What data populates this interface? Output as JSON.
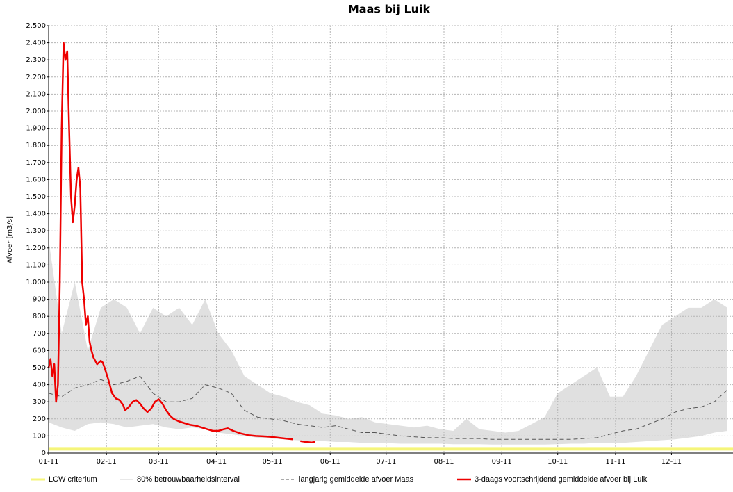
{
  "chart_data": {
    "type": "line",
    "title": "Maas bij Luik",
    "y_label": "Afvoer [m3/s]",
    "xlim": [
      0,
      367
    ],
    "xticks": [
      {
        "value": 0,
        "label": "01-11"
      },
      {
        "value": 31,
        "label": "02-11"
      },
      {
        "value": 59,
        "label": "03-11"
      },
      {
        "value": 90,
        "label": "04-11"
      },
      {
        "value": 120,
        "label": "05-11"
      },
      {
        "value": 151,
        "label": "06-11"
      },
      {
        "value": 181,
        "label": "07-11"
      },
      {
        "value": 212,
        "label": "08-11"
      },
      {
        "value": 243,
        "label": "09-11"
      },
      {
        "value": 273,
        "label": "10-11"
      },
      {
        "value": 304,
        "label": "11-11"
      },
      {
        "value": 334,
        "label": "12-11"
      }
    ],
    "ylim": [
      0,
      2500
    ],
    "yticks": [
      0,
      100,
      200,
      300,
      400,
      500,
      600,
      700,
      800,
      900,
      {
        "value": 1000,
        "label": "1.000"
      },
      {
        "value": 1100,
        "label": "1.100"
      },
      {
        "value": 1200,
        "label": "1.200"
      },
      {
        "value": 1300,
        "label": "1.300"
      },
      {
        "value": 1400,
        "label": "1.400"
      },
      {
        "value": 1500,
        "label": "1.500"
      },
      {
        "value": 1600,
        "label": "1.600"
      },
      {
        "value": 1700,
        "label": "1.700"
      },
      {
        "value": 1800,
        "label": "1.800"
      },
      {
        "value": 1900,
        "label": "1.900"
      },
      {
        "value": 2000,
        "label": "2.000"
      },
      {
        "value": 2100,
        "label": "2.100"
      },
      {
        "value": 2200,
        "label": "2.200"
      },
      {
        "value": 2300,
        "label": "2.300"
      },
      {
        "value": 2400,
        "label": "2.400"
      },
      {
        "value": 2500,
        "label": "2.500"
      }
    ],
    "grid": true,
    "series": [
      {
        "name": "LCW criterium",
        "color": "#f5f57a",
        "width": 5,
        "line_style": "solid",
        "x": [
          0,
          367
        ],
        "values": [
          25,
          25
        ]
      },
      {
        "name": "80% betrouwbaarheidsinterval",
        "color": "#e0e0e0",
        "kind": "band",
        "x": [
          0,
          7,
          14,
          21,
          28,
          35,
          42,
          49,
          56,
          63,
          70,
          77,
          84,
          91,
          98,
          105,
          112,
          119,
          126,
          133,
          140,
          147,
          154,
          161,
          168,
          175,
          182,
          189,
          196,
          203,
          210,
          217,
          224,
          231,
          238,
          245,
          252,
          259,
          266,
          273,
          280,
          287,
          294,
          301,
          308,
          315,
          322,
          329,
          336,
          343,
          350,
          357,
          364
        ],
        "upper": [
          1250,
          700,
          1000,
          600,
          850,
          900,
          850,
          700,
          850,
          800,
          850,
          750,
          900,
          700,
          600,
          450,
          400,
          350,
          330,
          300,
          280,
          230,
          220,
          200,
          210,
          180,
          170,
          160,
          150,
          160,
          140,
          130,
          200,
          140,
          130,
          120,
          130,
          170,
          210,
          350,
          400,
          450,
          500,
          330,
          330,
          450,
          600,
          750,
          800,
          850,
          850,
          900,
          850
        ],
        "lower": [
          180,
          150,
          130,
          170,
          180,
          170,
          150,
          160,
          170,
          150,
          140,
          150,
          140,
          120,
          110,
          100,
          90,
          85,
          80,
          75,
          70,
          70,
          65,
          65,
          60,
          60,
          58,
          55,
          55,
          55,
          55,
          52,
          52,
          52,
          50,
          50,
          50,
          50,
          50,
          52,
          55,
          55,
          60,
          60,
          60,
          65,
          70,
          75,
          80,
          90,
          100,
          120,
          130
        ]
      },
      {
        "name": "langjarig gemiddelde afvoer Maas",
        "color": "#555555",
        "width": 1,
        "line_style": "dashed",
        "x": [
          0,
          7,
          14,
          21,
          28,
          35,
          42,
          49,
          56,
          63,
          70,
          77,
          84,
          91,
          98,
          105,
          112,
          119,
          126,
          133,
          140,
          147,
          154,
          161,
          168,
          175,
          182,
          189,
          196,
          203,
          210,
          217,
          224,
          231,
          238,
          245,
          252,
          259,
          266,
          273,
          280,
          287,
          294,
          301,
          308,
          315,
          322,
          329,
          336,
          343,
          350,
          357,
          364
        ],
        "values": [
          350,
          330,
          380,
          400,
          430,
          400,
          420,
          450,
          350,
          300,
          300,
          320,
          400,
          380,
          350,
          250,
          210,
          200,
          190,
          170,
          160,
          150,
          160,
          140,
          120,
          120,
          110,
          100,
          95,
          90,
          90,
          85,
          85,
          85,
          80,
          80,
          80,
          80,
          80,
          80,
          80,
          85,
          90,
          110,
          130,
          140,
          170,
          200,
          240,
          260,
          270,
          300,
          370
        ]
      },
      {
        "name": "3-daags voortschrijdend gemiddelde afvoer bij Luik",
        "color": "#ee0000",
        "width": 2.5,
        "line_style": "solid",
        "x": [
          0,
          1,
          2,
          3,
          4,
          5,
          6,
          7,
          8,
          9,
          10,
          11,
          12,
          13,
          14,
          15,
          16,
          17,
          18,
          19,
          20,
          21,
          22,
          23,
          24,
          25,
          26,
          27,
          28,
          29,
          30,
          32,
          34,
          36,
          38,
          40,
          41,
          43,
          45,
          47,
          49,
          51,
          53,
          55,
          57,
          59,
          61,
          63,
          65,
          67,
          70,
          73,
          76,
          79,
          82,
          85,
          88,
          91,
          94,
          96,
          99,
          103,
          107,
          111,
          115,
          119,
          123,
          127,
          131,
          132,
          135,
          138,
          141,
          143
        ],
        "values": [
          500,
          550,
          450,
          520,
          300,
          400,
          1000,
          1900,
          2400,
          2300,
          2350,
          1900,
          1500,
          1350,
          1450,
          1600,
          1670,
          1550,
          1000,
          900,
          750,
          800,
          650,
          600,
          560,
          540,
          520,
          530,
          540,
          530,
          500,
          430,
          350,
          320,
          310,
          280,
          250,
          270,
          300,
          310,
          290,
          260,
          240,
          260,
          300,
          315,
          290,
          250,
          220,
          200,
          185,
          175,
          165,
          160,
          150,
          140,
          130,
          130,
          140,
          145,
          130,
          115,
          105,
          100,
          98,
          95,
          90,
          85,
          80,
          null,
          70,
          65,
          62,
          65
        ]
      }
    ]
  }
}
